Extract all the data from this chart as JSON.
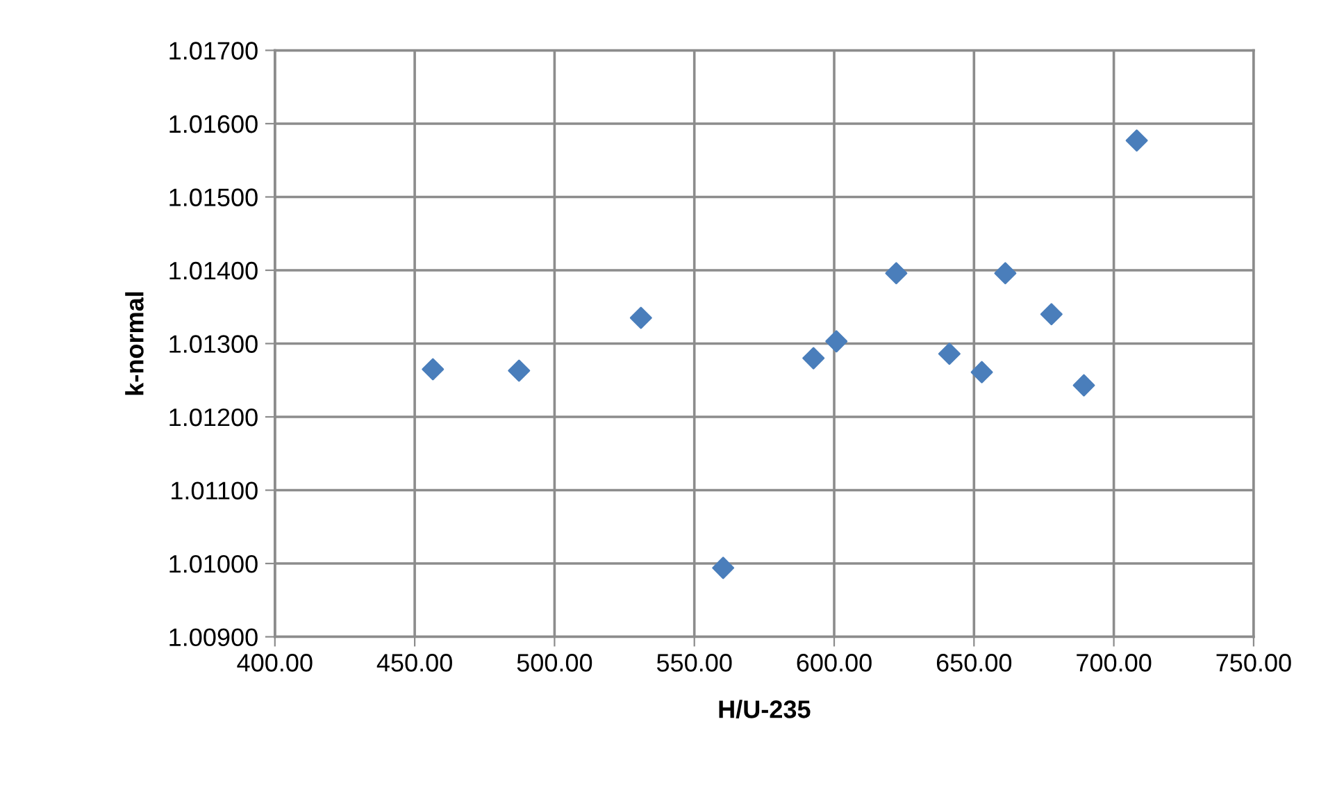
{
  "chart_data": {
    "type": "scatter",
    "xlabel": "H/U-235",
    "ylabel": "k-normal",
    "x": [
      456.5,
      487.3,
      530.9,
      560.3,
      592.6,
      600.8,
      622.2,
      641.2,
      652.8,
      661.2,
      677.7,
      689.3,
      708.2
    ],
    "series": [
      {
        "color": "#4a7ebb",
        "values": [
          1.01265,
          1.01263,
          1.01335,
          1.00994,
          1.0128,
          1.01303,
          1.01396,
          1.01286,
          1.01261,
          1.01396,
          1.0134,
          1.01243,
          1.01577
        ]
      }
    ],
    "marker": "diamond",
    "grid": true,
    "xlim": [
      400,
      750
    ],
    "ylim": [
      1.009,
      1.017
    ],
    "xticks": [
      {
        "value": 400,
        "label": "400.00"
      },
      {
        "value": 450,
        "label": "450.00"
      },
      {
        "value": 500,
        "label": "500.00"
      },
      {
        "value": 550,
        "label": "550.00"
      },
      {
        "value": 600,
        "label": "600.00"
      },
      {
        "value": 650,
        "label": "650.00"
      },
      {
        "value": 700,
        "label": "700.00"
      },
      {
        "value": 750,
        "label": "750.00"
      }
    ],
    "yticks": [
      {
        "value": 1.009,
        "label": "1.00900"
      },
      {
        "value": 1.01,
        "label": "1.01000"
      },
      {
        "value": 1.011,
        "label": "1.01100"
      },
      {
        "value": 1.012,
        "label": "1.01200"
      },
      {
        "value": 1.013,
        "label": "1.01300"
      },
      {
        "value": 1.014,
        "label": "1.01400"
      },
      {
        "value": 1.015,
        "label": "1.01500"
      },
      {
        "value": 1.016,
        "label": "1.01600"
      },
      {
        "value": 1.017,
        "label": "1.01700"
      }
    ]
  }
}
